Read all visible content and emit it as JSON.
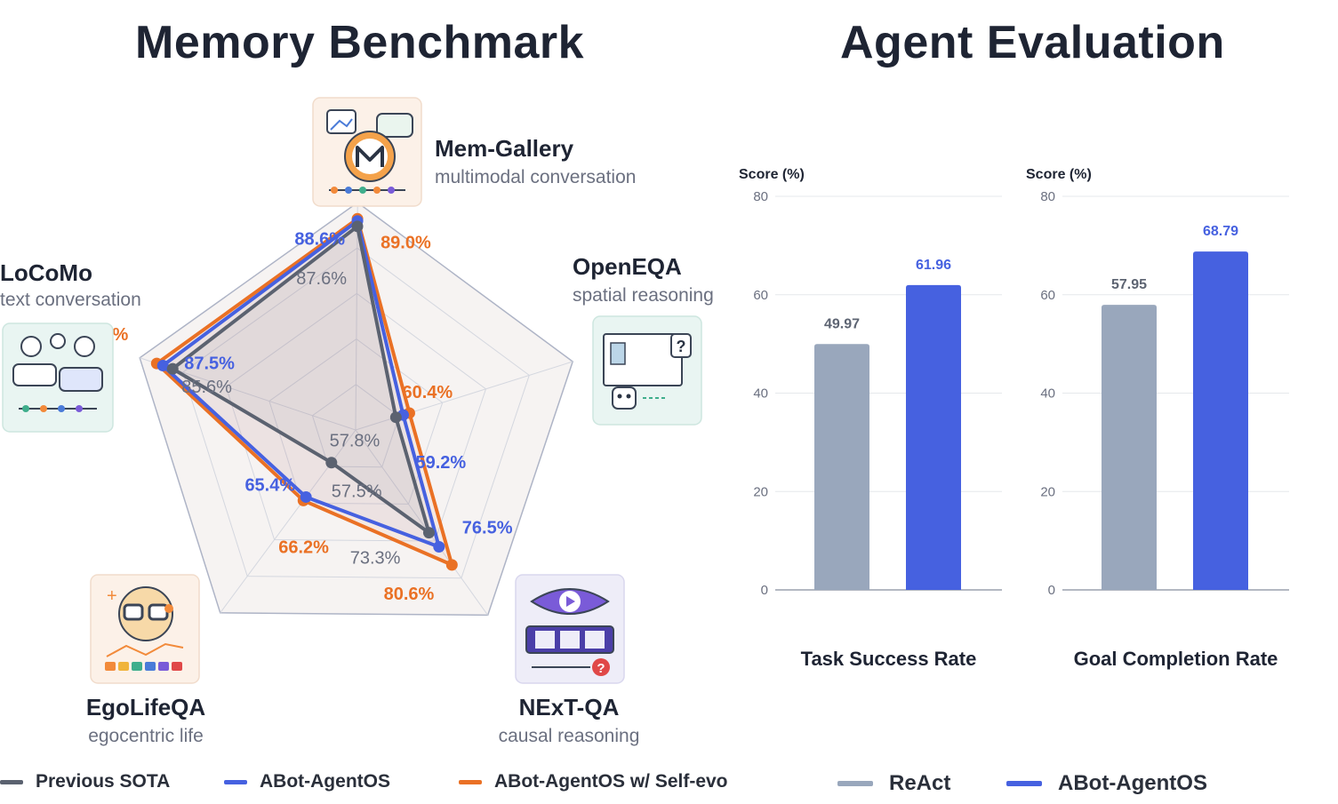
{
  "titles": {
    "left": "Memory Benchmark",
    "right": "Agent Evaluation"
  },
  "colors": {
    "previous_sota": "#5b6270",
    "abot": "#4661e0",
    "abot_self_evo": "#ea7125",
    "react_bar": "#99a7bc",
    "abot_bar": "#4661e0"
  },
  "chart_data": [
    {
      "type": "radar",
      "axes": [
        {
          "name": "Mem-Gallery",
          "subtitle": "multimodal conversation",
          "icon": "gallery-chat-icon"
        },
        {
          "name": "OpenEQA",
          "subtitle": "spatial reasoning",
          "icon": "robot-room-icon"
        },
        {
          "name": "NExT-QA",
          "subtitle": "causal reasoning",
          "icon": "video-eye-icon"
        },
        {
          "name": "EgoLifeQA",
          "subtitle": "egocentric life",
          "icon": "glasses-face-icon"
        },
        {
          "name": "LoCoMo",
          "subtitle": "text conversation",
          "icon": "chat-bubbles-icon"
        }
      ],
      "series": [
        {
          "name": "Previous SOTA",
          "values": [
            87.6,
            57.8,
            73.3,
            57.5,
            85.6
          ],
          "labels": [
            "87.6%",
            "57.8%",
            "73.3%",
            "57.5%",
            "85.6%"
          ]
        },
        {
          "name": "ABot-AgentOS",
          "values": [
            88.6,
            59.2,
            76.5,
            65.4,
            87.5
          ],
          "labels": [
            "88.6%",
            "59.2%",
            "76.5%",
            "65.4%",
            "87.5%"
          ]
        },
        {
          "name": "ABot-AgentOS w/ Self-evo",
          "values": [
            89.0,
            60.4,
            80.6,
            66.2,
            88.7
          ],
          "labels": [
            "89.0%",
            "60.4%",
            "80.6%",
            "66.2%",
            "88.7%"
          ]
        }
      ]
    },
    {
      "type": "bar",
      "title": "Task Success Rate",
      "ylabel": "Score (%)",
      "ylim": [
        0,
        80
      ],
      "yticks": [
        0,
        20,
        40,
        60,
        80
      ],
      "series": [
        {
          "name": "ReAct",
          "value": 49.97,
          "label": "49.97"
        },
        {
          "name": "ABot-AgentOS",
          "value": 61.96,
          "label": "61.96"
        }
      ]
    },
    {
      "type": "bar",
      "title": "Goal Completion Rate",
      "ylabel": "Score (%)",
      "ylim": [
        0,
        80
      ],
      "yticks": [
        0,
        20,
        40,
        60,
        80
      ],
      "series": [
        {
          "name": "ReAct",
          "value": 57.95,
          "label": "57.95"
        },
        {
          "name": "ABot-AgentOS",
          "value": 68.79,
          "label": "68.79"
        }
      ]
    }
  ],
  "legends": {
    "left": [
      "Previous SOTA",
      "ABot-AgentOS",
      "ABot-AgentOS w/ Self-evo"
    ],
    "right": [
      "ReAct",
      "ABot-AgentOS"
    ]
  }
}
